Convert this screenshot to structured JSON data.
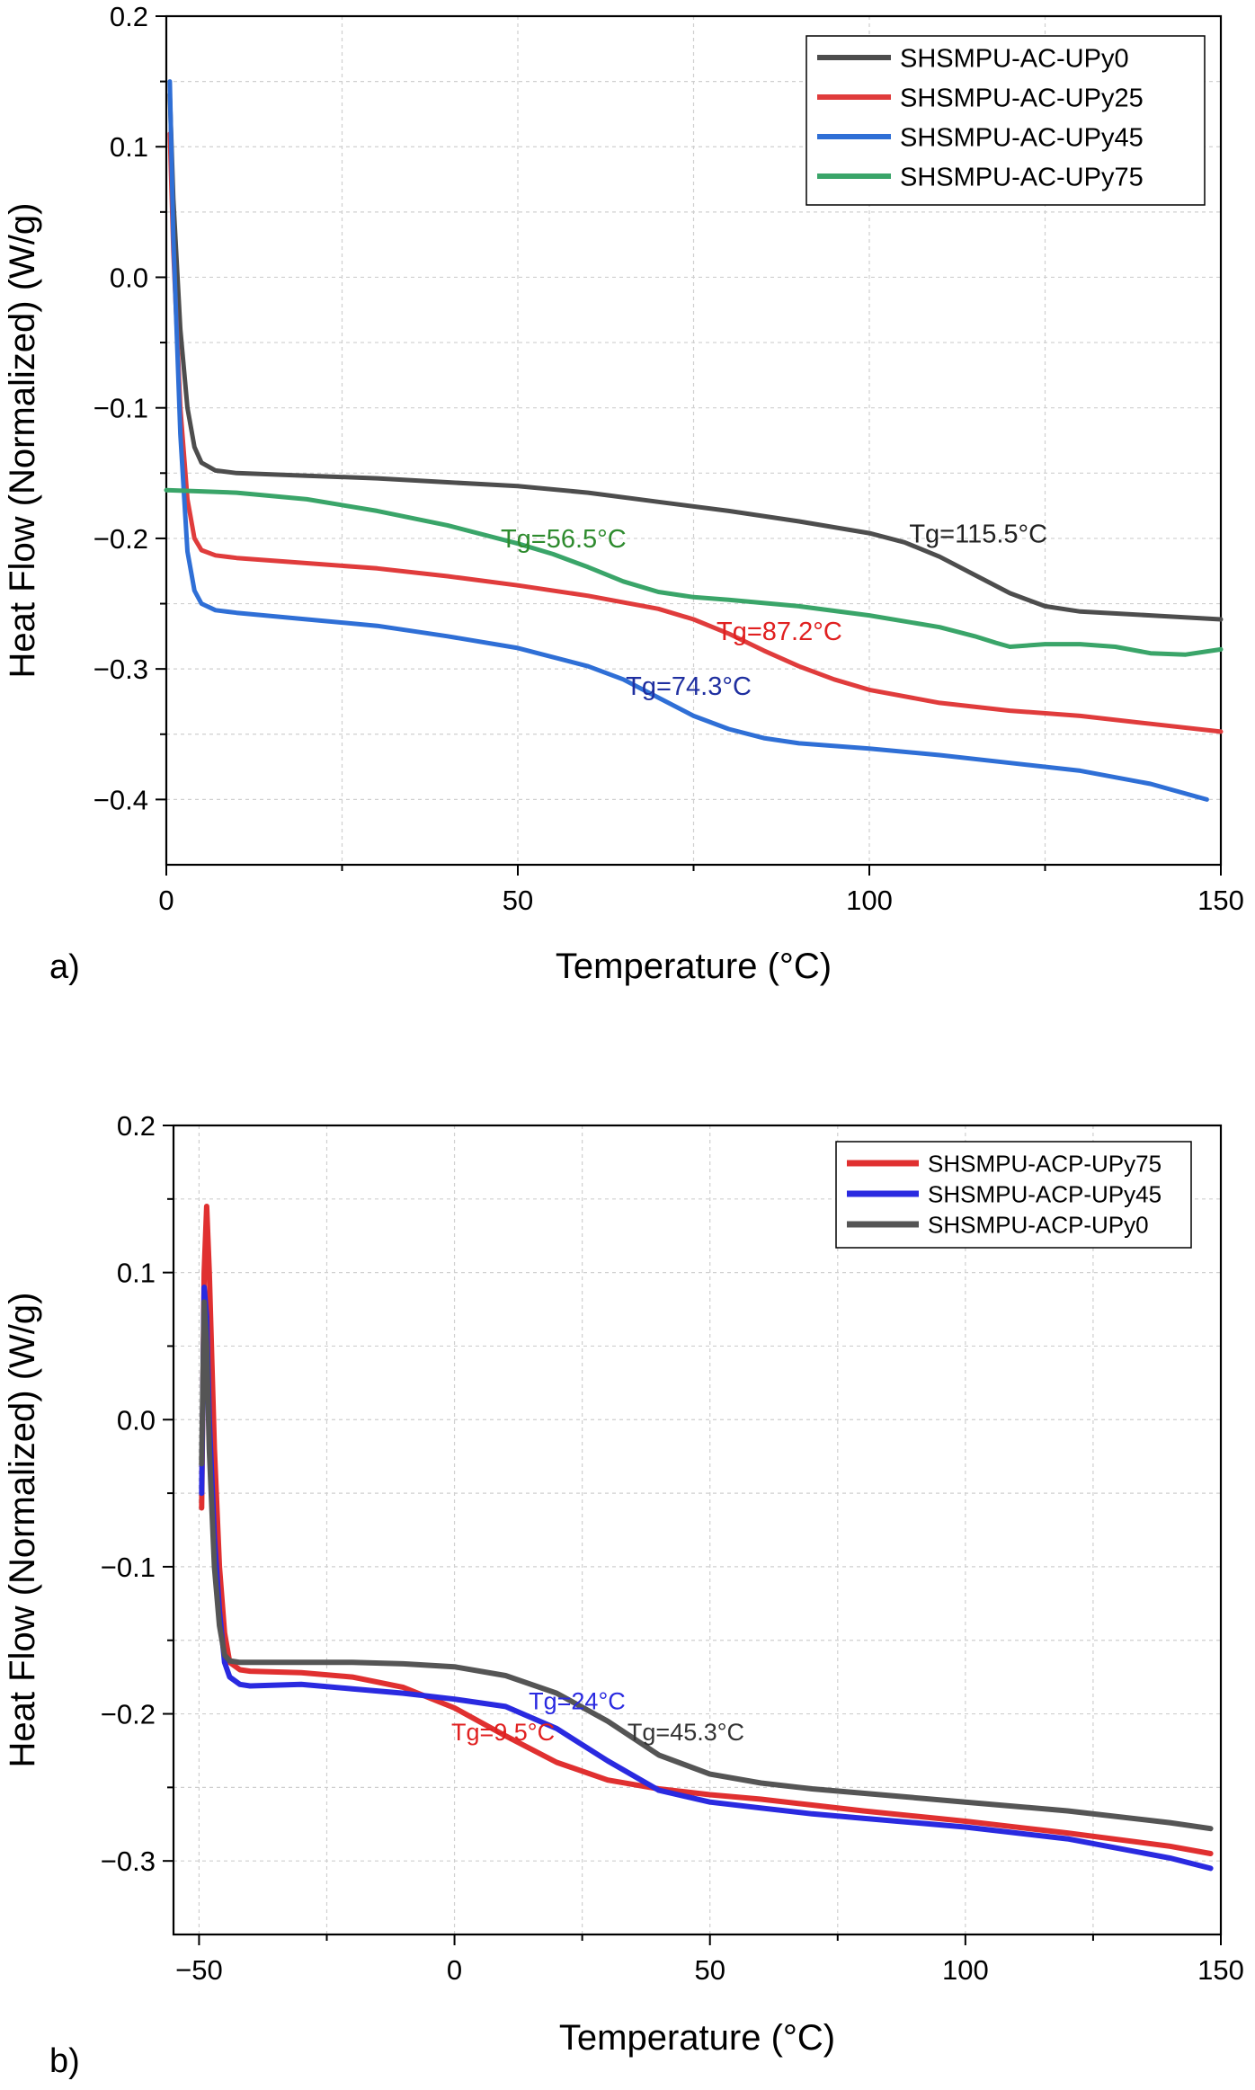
{
  "chart_data": [
    {
      "panel_label": "a)",
      "type": "line",
      "xlabel": "Temperature (°C)",
      "ylabel": "Heat Flow (Normalized) (W/g)",
      "xlim": [
        0,
        150
      ],
      "ylim": [
        -0.45,
        0.2
      ],
      "xticks": [
        0,
        50,
        100,
        150
      ],
      "xtick_labels": [
        "0",
        "50",
        "100",
        "150"
      ],
      "yticks": [
        -0.4,
        -0.3,
        -0.2,
        -0.1,
        0.0,
        0.1,
        0.2
      ],
      "ytick_labels": [
        "−0.4",
        "−0.3",
        "−0.2",
        "−0.1",
        "0.0",
        "0.1",
        "0.2"
      ],
      "grid": true,
      "legend_position": "top-right",
      "series": [
        {
          "name": "SHSMPU-AC-UPy0",
          "color": "#4d4d4d",
          "x": [
            0.5,
            1,
            2,
            3,
            4,
            5,
            7,
            10,
            20,
            30,
            40,
            50,
            60,
            70,
            80,
            90,
            100,
            105,
            110,
            115,
            120,
            125,
            130,
            140,
            150
          ],
          "y": [
            0.14,
            0.06,
            -0.04,
            -0.1,
            -0.13,
            -0.142,
            -0.148,
            -0.15,
            -0.152,
            -0.154,
            -0.157,
            -0.16,
            -0.165,
            -0.172,
            -0.179,
            -0.187,
            -0.196,
            -0.203,
            -0.214,
            -0.228,
            -0.242,
            -0.252,
            -0.256,
            -0.259,
            -0.262
          ]
        },
        {
          "name": "SHSMPU-AC-UPy25",
          "color": "#e03c3c",
          "x": [
            0.5,
            1,
            2,
            3,
            4,
            5,
            7,
            10,
            20,
            30,
            40,
            50,
            60,
            70,
            75,
            80,
            85,
            90,
            95,
            100,
            110,
            120,
            130,
            140,
            150
          ],
          "y": [
            0.11,
            0.02,
            -0.1,
            -0.17,
            -0.2,
            -0.209,
            -0.213,
            -0.215,
            -0.219,
            -0.223,
            -0.229,
            -0.236,
            -0.244,
            -0.254,
            -0.262,
            -0.273,
            -0.286,
            -0.298,
            -0.308,
            -0.316,
            -0.326,
            -0.332,
            -0.336,
            -0.342,
            -0.348
          ]
        },
        {
          "name": "SHSMPU-AC-UPy45",
          "color": "#2f6fd6",
          "x": [
            0.5,
            1,
            2,
            3,
            4,
            5,
            7,
            10,
            20,
            30,
            40,
            50,
            60,
            65,
            70,
            75,
            80,
            85,
            90,
            100,
            110,
            120,
            130,
            140,
            148
          ],
          "y": [
            0.15,
            0.03,
            -0.12,
            -0.21,
            -0.24,
            -0.25,
            -0.255,
            -0.257,
            -0.262,
            -0.267,
            -0.275,
            -0.284,
            -0.298,
            -0.308,
            -0.322,
            -0.336,
            -0.346,
            -0.353,
            -0.357,
            -0.361,
            -0.366,
            -0.372,
            -0.378,
            -0.388,
            -0.4
          ]
        },
        {
          "name": "SHSMPU-AC-UPy75",
          "color": "#3aa569",
          "x": [
            0,
            5,
            10,
            20,
            30,
            40,
            50,
            55,
            60,
            65,
            70,
            75,
            80,
            90,
            100,
            110,
            115,
            118,
            120,
            125,
            130,
            135,
            140,
            145,
            150
          ],
          "y": [
            -0.163,
            -0.164,
            -0.165,
            -0.17,
            -0.179,
            -0.19,
            -0.204,
            -0.212,
            -0.222,
            -0.233,
            -0.241,
            -0.245,
            -0.247,
            -0.252,
            -0.259,
            -0.268,
            -0.275,
            -0.28,
            -0.283,
            -0.281,
            -0.281,
            -0.283,
            -0.288,
            -0.289,
            -0.285
          ]
        }
      ],
      "annotations": [
        {
          "text": "Tg=115.5°C",
          "x": 115.5,
          "y": -0.203,
          "color": "#222222"
        },
        {
          "text": "Tg=56.5°C",
          "x": 56.5,
          "y": -0.207,
          "color": "#2e8b2e"
        },
        {
          "text": "Tg=87.2°C",
          "x": 87.2,
          "y": -0.278,
          "color": "#e02020"
        },
        {
          "text": "Tg=74.3°C",
          "x": 74.3,
          "y": -0.32,
          "color": "#1f2fa0"
        }
      ]
    },
    {
      "panel_label": "b)",
      "type": "line",
      "xlabel": "Temperature (°C)",
      "ylabel": "Heat Flow (Normalized) (W/g)",
      "xlim": [
        -55,
        150
      ],
      "ylim": [
        -0.35,
        0.2
      ],
      "xticks": [
        -50,
        0,
        50,
        100,
        150
      ],
      "xtick_labels": [
        "−50",
        "0",
        "50",
        "100",
        "150"
      ],
      "yticks": [
        -0.3,
        -0.2,
        -0.1,
        0.0,
        0.1,
        0.2
      ],
      "ytick_labels": [
        "−0.3",
        "−0.2",
        "−0.1",
        "0.0",
        "0.1",
        "0.2"
      ],
      "grid": true,
      "legend_position": "top-right",
      "series": [
        {
          "name": "SHSMPU-ACP-UPy75",
          "color": "#e03030",
          "x": [
            -49.5,
            -49,
            -48.5,
            -48,
            -47,
            -46,
            -45,
            -44,
            -42,
            -40,
            -30,
            -20,
            -10,
            0,
            10,
            20,
            30,
            40,
            50,
            60,
            70,
            80,
            100,
            120,
            140,
            148
          ],
          "y": [
            -0.06,
            0.1,
            0.145,
            0.1,
            -0.02,
            -0.1,
            -0.145,
            -0.165,
            -0.17,
            -0.171,
            -0.172,
            -0.175,
            -0.182,
            -0.196,
            -0.215,
            -0.233,
            -0.245,
            -0.251,
            -0.255,
            -0.258,
            -0.262,
            -0.266,
            -0.273,
            -0.281,
            -0.29,
            -0.295
          ]
        },
        {
          "name": "SHSMPU-ACP-UPy45",
          "color": "#2a2ae0",
          "x": [
            -49.5,
            -49,
            -48.5,
            -48,
            -47,
            -46,
            -45,
            -44,
            -42,
            -40,
            -30,
            -20,
            -10,
            0,
            10,
            20,
            30,
            40,
            50,
            60,
            70,
            80,
            100,
            120,
            140,
            148
          ],
          "y": [
            -0.05,
            0.09,
            0.07,
            0.0,
            -0.08,
            -0.13,
            -0.165,
            -0.175,
            -0.18,
            -0.181,
            -0.18,
            -0.183,
            -0.186,
            -0.19,
            -0.195,
            -0.21,
            -0.232,
            -0.252,
            -0.26,
            -0.264,
            -0.268,
            -0.271,
            -0.277,
            -0.285,
            -0.298,
            -0.305
          ]
        },
        {
          "name": "SHSMPU-ACP-UPy0",
          "color": "#555555",
          "x": [
            -49.5,
            -49,
            -48.5,
            -48,
            -47,
            -46,
            -45,
            -44,
            -42,
            -40,
            -30,
            -20,
            -10,
            0,
            10,
            20,
            30,
            40,
            50,
            60,
            70,
            80,
            100,
            120,
            140,
            148
          ],
          "y": [
            -0.03,
            0.08,
            0.05,
            -0.02,
            -0.1,
            -0.14,
            -0.16,
            -0.164,
            -0.165,
            -0.165,
            -0.165,
            -0.165,
            -0.166,
            -0.168,
            -0.174,
            -0.186,
            -0.205,
            -0.228,
            -0.241,
            -0.247,
            -0.251,
            -0.254,
            -0.26,
            -0.266,
            -0.274,
            -0.278
          ]
        }
      ],
      "annotations": [
        {
          "text": "Tg=9.5°C",
          "x": 9.5,
          "y": -0.218,
          "color": "#e02020"
        },
        {
          "text": "Tg=24°C",
          "x": 24,
          "y": -0.197,
          "color": "#2a2ae0"
        },
        {
          "text": "Tg=45.3°C",
          "x": 45.3,
          "y": -0.218,
          "color": "#333333"
        }
      ]
    }
  ]
}
